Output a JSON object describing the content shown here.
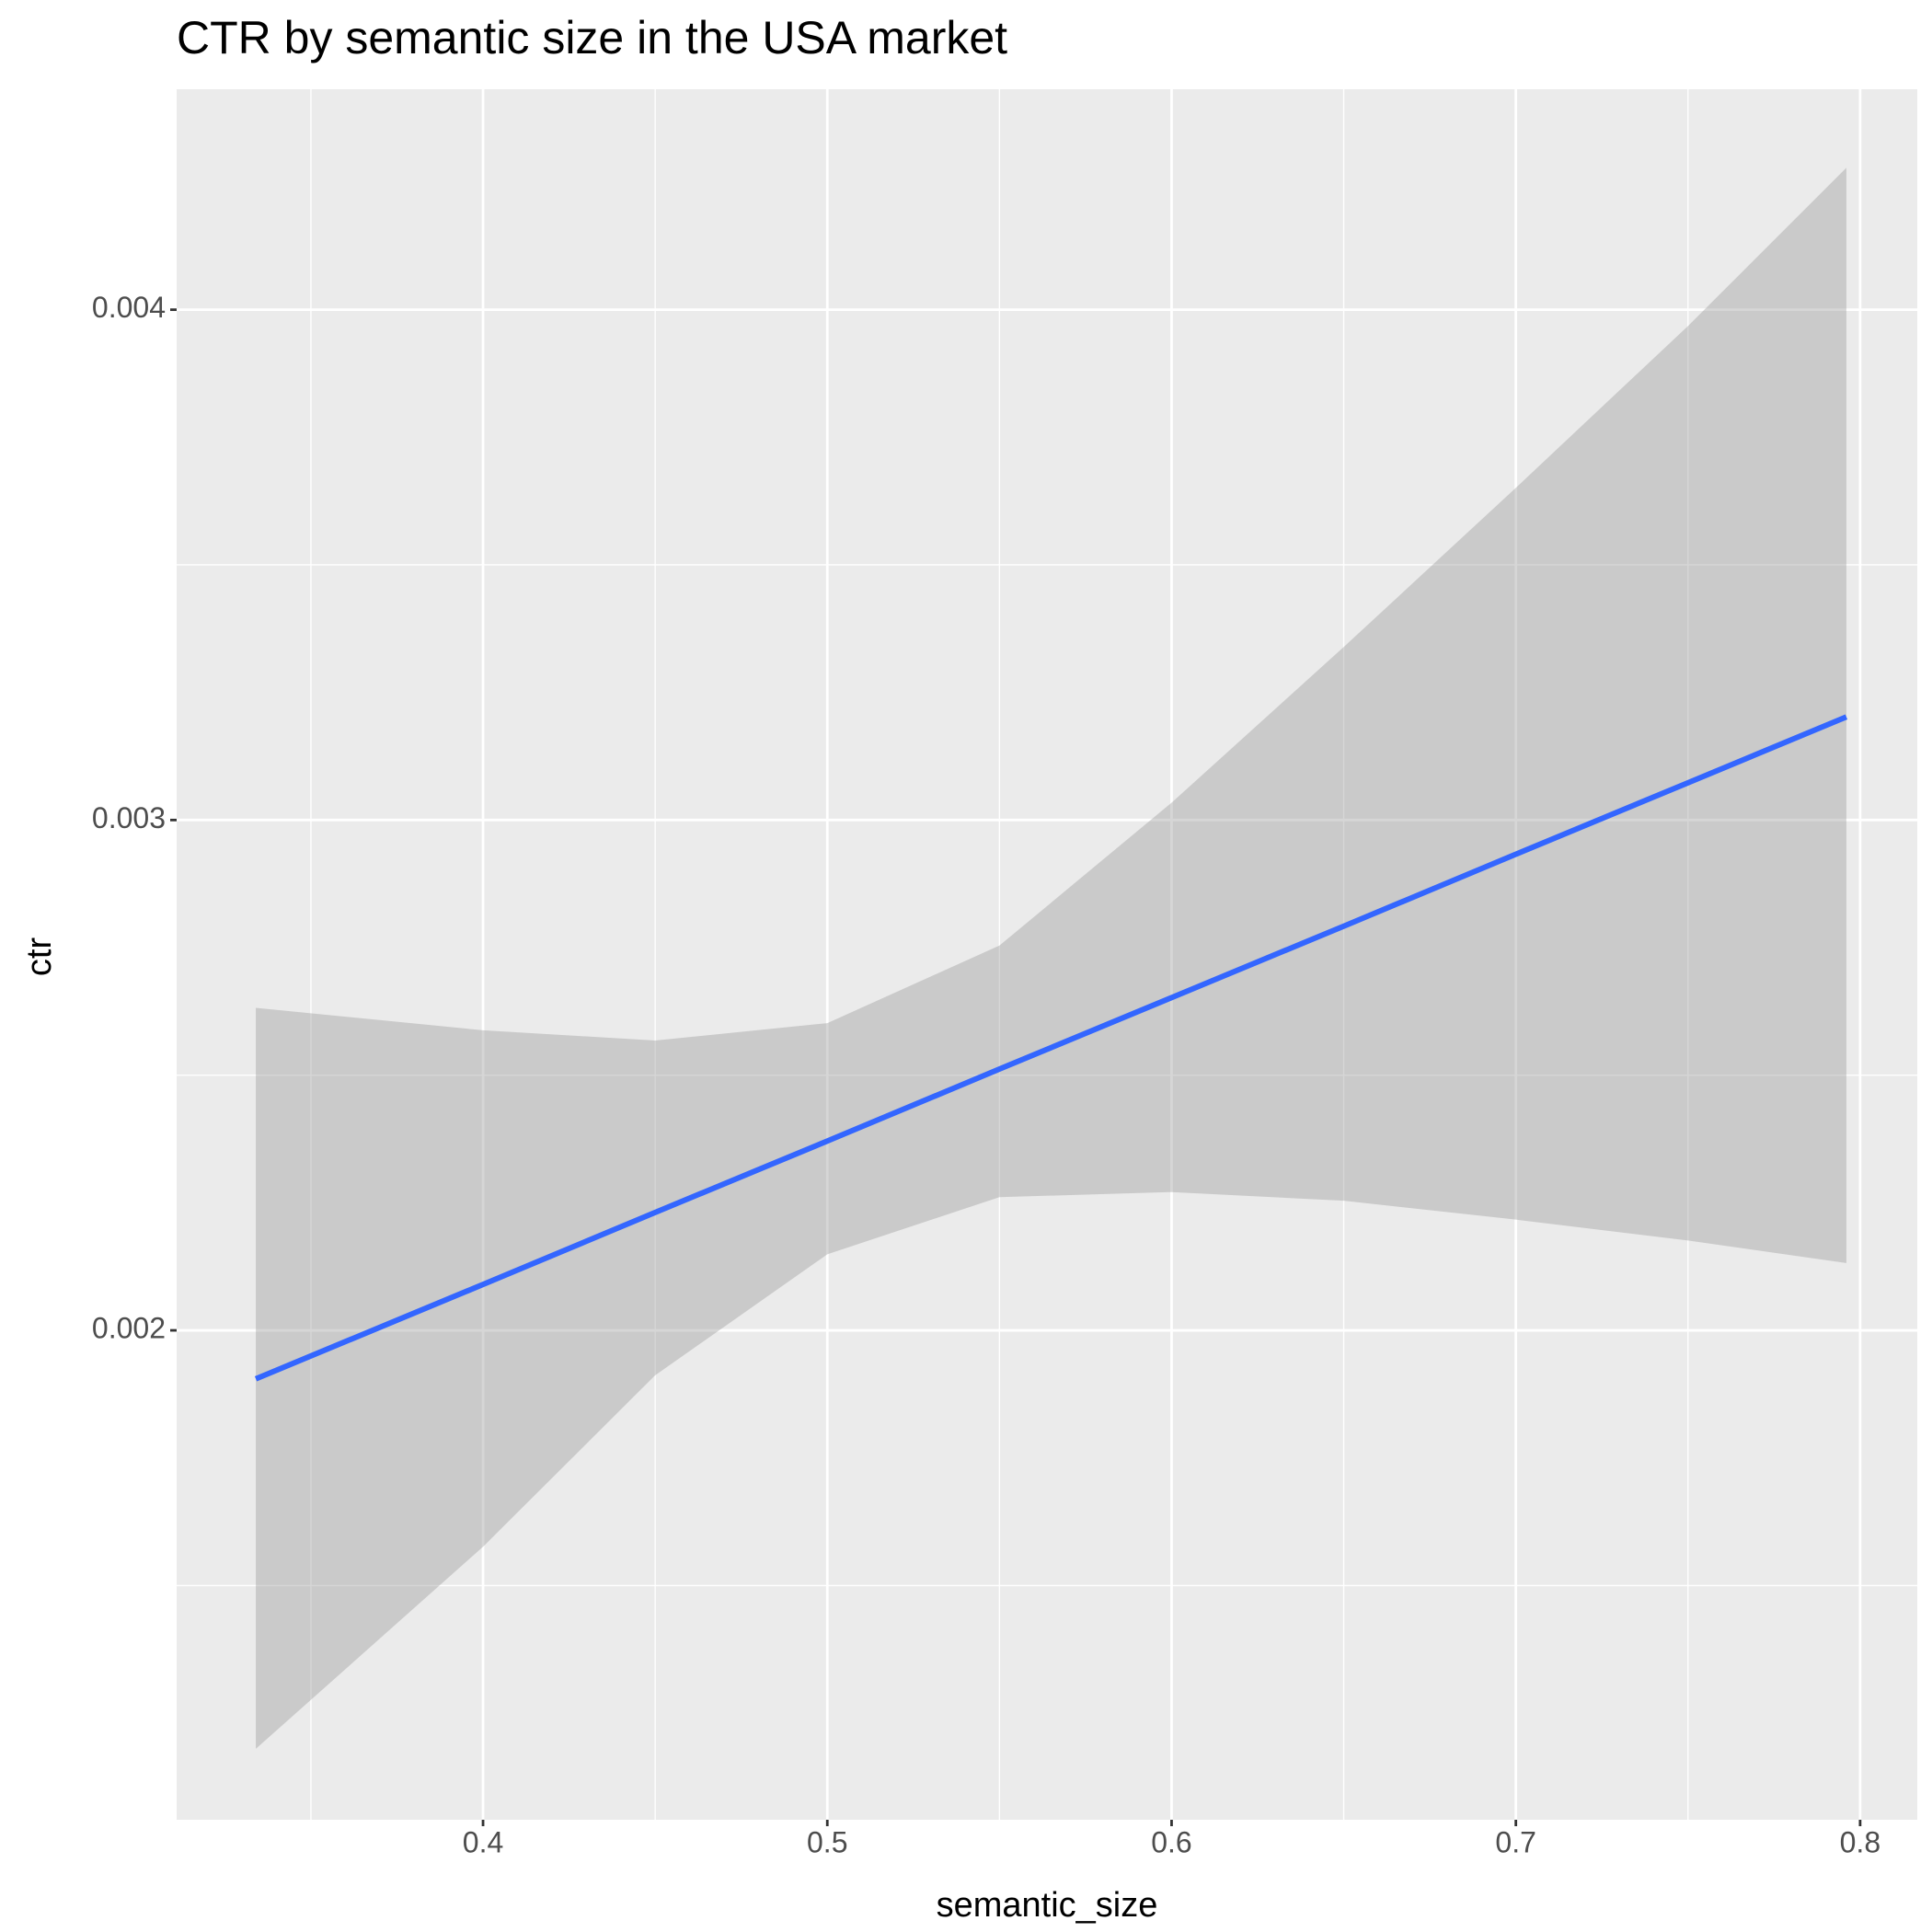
{
  "chart_data": {
    "type": "line",
    "title": "CTR by semantic size in the USA market",
    "x_label": "semantic_size",
    "y_label": "ctr",
    "x": [
      0.334,
      0.4,
      0.45,
      0.5,
      0.55,
      0.6,
      0.65,
      0.7,
      0.75,
      0.796
    ],
    "values": [
      0.001905,
      0.00209,
      0.002231,
      0.002371,
      0.002512,
      0.002652,
      0.002792,
      0.002933,
      0.003073,
      0.003202
    ],
    "lower": [
      0.00118,
      0.001576,
      0.001912,
      0.002149,
      0.002261,
      0.002271,
      0.002254,
      0.002217,
      0.002176,
      0.002132
    ],
    "upper": [
      0.002632,
      0.002588,
      0.002568,
      0.002602,
      0.002754,
      0.003034,
      0.003339,
      0.003651,
      0.003968,
      0.004278
    ],
    "color": "#3366FF",
    "band_color": "#999999",
    "xlim": [
      0.311,
      0.8166
    ],
    "xticks": [
      0.4,
      0.5,
      0.6,
      0.7,
      0.8
    ],
    "ylim": [
      0.001041,
      0.004432
    ],
    "yticks": [
      0.002,
      0.003,
      0.004
    ],
    "x_minor_breaks": [
      0.35,
      0.45,
      0.55,
      0.65,
      0.75
    ],
    "y_minor_breaks": [
      0.0015,
      0.0025,
      0.0035
    ],
    "grid": true
  }
}
